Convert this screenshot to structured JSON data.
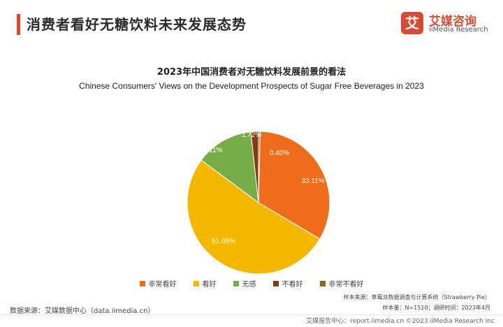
{
  "header": {
    "title": "消费者看好无糖饮料未来发展态势",
    "logo_mark": "艾",
    "logo_cn": "艾媒咨询",
    "logo_en": "iiMedia Research"
  },
  "chart_data": {
    "type": "pie",
    "title": "2023年中国消费者对无糖饮料发展前景的看法",
    "subtitle": "Chinese Consumers' Views on the Development Prospects of Sugar Free Beverages in 2023",
    "slices": [
      {
        "name": "非常看好",
        "value": 33.11,
        "label": "33.11%",
        "color": "#ef6c1d"
      },
      {
        "name": "看好",
        "value": 51.66,
        "label": "51.66%",
        "color": "#f5b800"
      },
      {
        "name": "无感",
        "value": 13.11,
        "label": "13.11%",
        "color": "#77ad48"
      },
      {
        "name": "不看好",
        "value": 1.72,
        "label": "1.72%",
        "color": "#8a3a12"
      },
      {
        "name": "非常不看好",
        "value": 0.4,
        "label": "0.40%",
        "color": "#8b6a1c"
      }
    ],
    "legend_position": "bottom"
  },
  "notes": {
    "sample_source": "样本来源：草莓派数据调查与计算系统（Strawberry Pie）",
    "sample_size": "样本量：N=1510；调研时间：2023年4月",
    "data_source": "数据来源：艾媒数据中心（data.iimedia.cn）"
  },
  "footer": {
    "text": "艾媒报告中心：report.iimedia.cn   ©2023  iiMedia Research  Inc"
  }
}
